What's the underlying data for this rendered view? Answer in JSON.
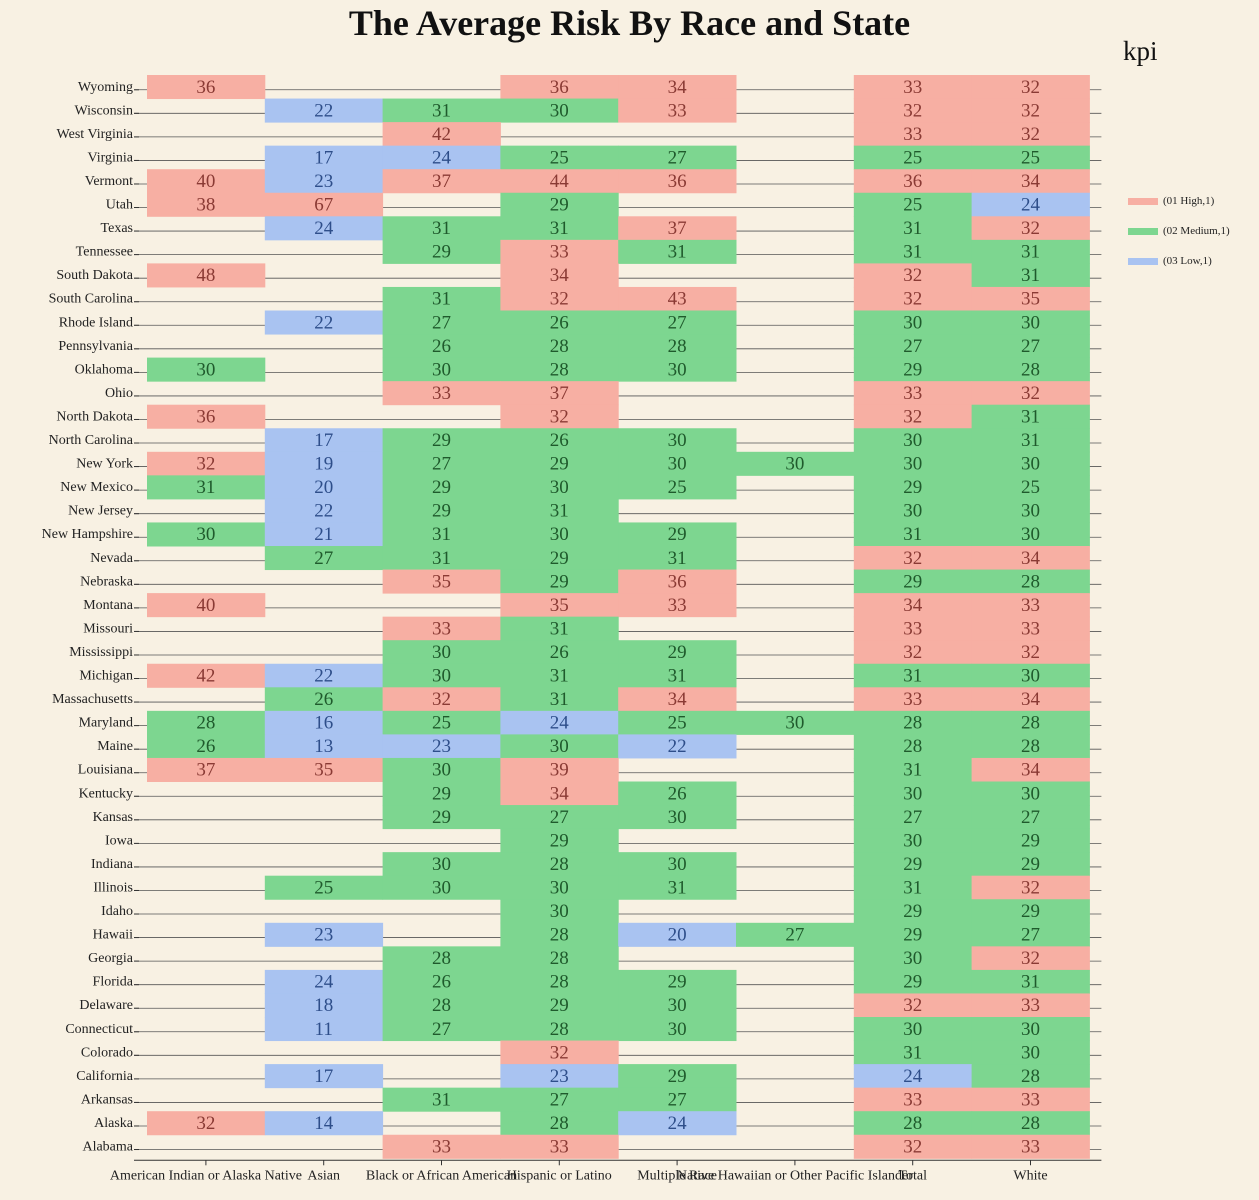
{
  "chart_data": {
    "type": "heatmap",
    "title": "The Average Risk By Race and State",
    "legend_title": "kpi",
    "legend_placement": "right",
    "colors": {
      "01 High": "#f7afa3",
      "02 Medium": "#7dd690",
      "03 Low": "#a9c3f1"
    },
    "legend": [
      {
        "key": "01 High",
        "label": "(01 High,1)"
      },
      {
        "key": "02 Medium",
        "label": "(02 Medium,1)"
      },
      {
        "key": "03 Low",
        "label": "(03 Low,1)"
      }
    ],
    "columns": [
      "American Indian or Alaska Native",
      "Asian",
      "Black or African American",
      "Hispanic or Latino",
      "Multiple Race",
      "Native Hawaiian or Other Pacific Islander",
      "Total",
      "White"
    ],
    "rows": [
      {
        "state": "Wyoming",
        "values": [
          36,
          null,
          null,
          36,
          34,
          null,
          33,
          32
        ]
      },
      {
        "state": "Wisconsin",
        "values": [
          null,
          22,
          31,
          30,
          33,
          null,
          32,
          32
        ]
      },
      {
        "state": "West Virginia",
        "values": [
          null,
          null,
          42,
          null,
          null,
          null,
          33,
          32
        ]
      },
      {
        "state": "Virginia",
        "values": [
          null,
          17,
          24,
          25,
          27,
          null,
          25,
          25
        ]
      },
      {
        "state": "Vermont",
        "values": [
          40,
          23,
          37,
          44,
          36,
          null,
          36,
          34
        ]
      },
      {
        "state": "Utah",
        "values": [
          38,
          67,
          null,
          29,
          null,
          null,
          25,
          24
        ]
      },
      {
        "state": "Texas",
        "values": [
          null,
          24,
          31,
          31,
          37,
          null,
          31,
          32
        ]
      },
      {
        "state": "Tennessee",
        "values": [
          null,
          null,
          29,
          33,
          31,
          null,
          31,
          31
        ]
      },
      {
        "state": "South Dakota",
        "values": [
          48,
          null,
          null,
          34,
          null,
          null,
          32,
          31
        ]
      },
      {
        "state": "South Carolina",
        "values": [
          null,
          null,
          31,
          32,
          43,
          null,
          32,
          35
        ]
      },
      {
        "state": "Rhode Island",
        "values": [
          null,
          22,
          27,
          26,
          27,
          null,
          30,
          30
        ]
      },
      {
        "state": "Pennsylvania",
        "values": [
          null,
          null,
          26,
          28,
          28,
          null,
          27,
          27
        ]
      },
      {
        "state": "Oklahoma",
        "values": [
          30,
          null,
          30,
          28,
          30,
          null,
          29,
          28
        ]
      },
      {
        "state": "Ohio",
        "values": [
          null,
          null,
          33,
          37,
          null,
          null,
          33,
          32
        ]
      },
      {
        "state": "North Dakota",
        "values": [
          36,
          null,
          null,
          32,
          null,
          null,
          32,
          31
        ]
      },
      {
        "state": "North Carolina",
        "values": [
          null,
          17,
          29,
          26,
          30,
          null,
          30,
          31
        ]
      },
      {
        "state": "New York",
        "values": [
          32,
          19,
          27,
          29,
          30,
          30,
          30,
          30
        ]
      },
      {
        "state": "New Mexico",
        "values": [
          31,
          20,
          29,
          30,
          25,
          null,
          29,
          25
        ]
      },
      {
        "state": "New Jersey",
        "values": [
          null,
          22,
          29,
          31,
          null,
          null,
          30,
          30
        ]
      },
      {
        "state": "New Hampshire",
        "values": [
          30,
          21,
          31,
          30,
          29,
          null,
          31,
          30
        ]
      },
      {
        "state": "Nevada",
        "values": [
          null,
          27,
          31,
          29,
          31,
          null,
          32,
          34
        ]
      },
      {
        "state": "Nebraska",
        "values": [
          null,
          null,
          35,
          29,
          36,
          null,
          29,
          28
        ]
      },
      {
        "state": "Montana",
        "values": [
          40,
          null,
          null,
          35,
          33,
          null,
          34,
          33
        ]
      },
      {
        "state": "Missouri",
        "values": [
          null,
          null,
          33,
          31,
          null,
          null,
          33,
          33
        ]
      },
      {
        "state": "Mississippi",
        "values": [
          null,
          null,
          30,
          26,
          29,
          null,
          32,
          32
        ]
      },
      {
        "state": "Michigan",
        "values": [
          42,
          22,
          30,
          31,
          31,
          null,
          31,
          30
        ]
      },
      {
        "state": "Massachusetts",
        "values": [
          null,
          26,
          32,
          31,
          34,
          null,
          33,
          34
        ]
      },
      {
        "state": "Maryland",
        "values": [
          28,
          16,
          25,
          24,
          25,
          30,
          28,
          28
        ]
      },
      {
        "state": "Maine",
        "values": [
          26,
          13,
          23,
          30,
          22,
          null,
          28,
          28
        ]
      },
      {
        "state": "Louisiana",
        "values": [
          37,
          35,
          30,
          39,
          null,
          null,
          31,
          34
        ]
      },
      {
        "state": "Kentucky",
        "values": [
          null,
          null,
          29,
          34,
          26,
          null,
          30,
          30
        ]
      },
      {
        "state": "Kansas",
        "values": [
          null,
          null,
          29,
          27,
          30,
          null,
          27,
          27
        ]
      },
      {
        "state": "Iowa",
        "values": [
          null,
          null,
          null,
          29,
          null,
          null,
          30,
          29
        ]
      },
      {
        "state": "Indiana",
        "values": [
          null,
          null,
          30,
          28,
          30,
          null,
          29,
          29
        ]
      },
      {
        "state": "Illinois",
        "values": [
          null,
          25,
          30,
          30,
          31,
          null,
          31,
          32
        ]
      },
      {
        "state": "Idaho",
        "values": [
          null,
          null,
          null,
          30,
          null,
          null,
          29,
          29
        ]
      },
      {
        "state": "Hawaii",
        "values": [
          null,
          23,
          null,
          28,
          20,
          27,
          29,
          27
        ]
      },
      {
        "state": "Georgia",
        "values": [
          null,
          null,
          28,
          28,
          null,
          null,
          30,
          32
        ]
      },
      {
        "state": "Florida",
        "values": [
          null,
          24,
          26,
          28,
          29,
          null,
          29,
          31
        ]
      },
      {
        "state": "Delaware",
        "values": [
          null,
          18,
          28,
          29,
          30,
          null,
          32,
          33
        ]
      },
      {
        "state": "Connecticut",
        "values": [
          null,
          11,
          27,
          28,
          30,
          null,
          30,
          30
        ]
      },
      {
        "state": "Colorado",
        "values": [
          null,
          null,
          null,
          32,
          null,
          null,
          31,
          30
        ]
      },
      {
        "state": "California",
        "values": [
          null,
          17,
          null,
          23,
          29,
          null,
          24,
          28
        ]
      },
      {
        "state": "Arkansas",
        "values": [
          null,
          null,
          31,
          27,
          27,
          null,
          33,
          33
        ]
      },
      {
        "state": "Alaska",
        "values": [
          32,
          14,
          null,
          28,
          24,
          null,
          28,
          28
        ]
      },
      {
        "state": "Alabama",
        "values": [
          null,
          null,
          33,
          33,
          null,
          null,
          32,
          33
        ]
      }
    ]
  }
}
